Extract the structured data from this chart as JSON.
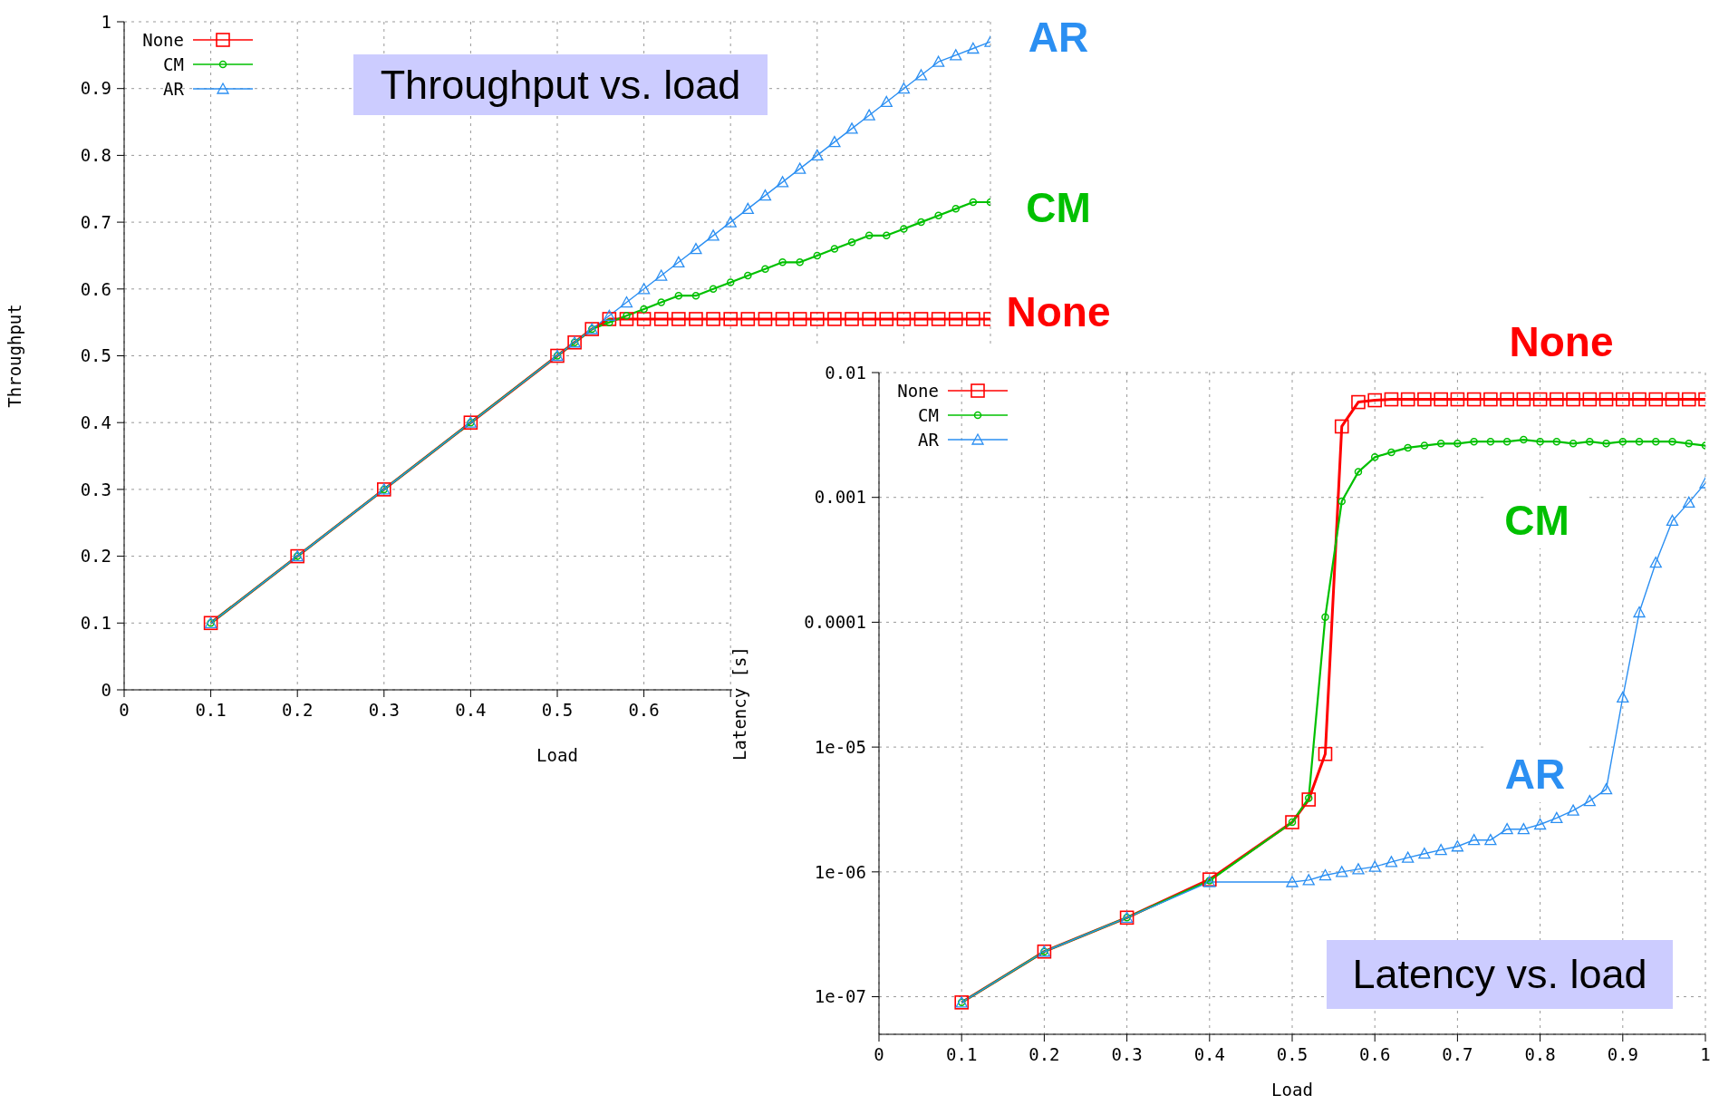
{
  "chart_data": [
    {
      "type": "line",
      "title": "Throughput vs. load",
      "xlabel": "Load",
      "ylabel": "Throughput",
      "x": [
        0.1,
        0.2,
        0.3,
        0.4,
        0.5,
        0.52,
        0.54,
        0.56,
        0.58,
        0.6,
        0.62,
        0.64,
        0.66,
        0.68,
        0.7,
        0.72,
        0.74,
        0.76,
        0.78,
        0.8,
        0.82,
        0.84,
        0.86,
        0.88,
        0.9,
        0.92,
        0.94,
        0.96,
        0.98,
        1.0
      ],
      "series": [
        {
          "name": "None",
          "color": "#ff0000",
          "marker": "square",
          "values": [
            0.1,
            0.2,
            0.3,
            0.4,
            0.5,
            0.52,
            0.54,
            0.555,
            0.555,
            0.555,
            0.555,
            0.555,
            0.555,
            0.555,
            0.555,
            0.555,
            0.555,
            0.555,
            0.555,
            0.555,
            0.555,
            0.555,
            0.555,
            0.555,
            0.555,
            0.555,
            0.555,
            0.555,
            0.555,
            0.555
          ]
        },
        {
          "name": "CM",
          "color": "#00c000",
          "marker": "circle",
          "values": [
            0.1,
            0.2,
            0.3,
            0.4,
            0.5,
            0.52,
            0.54,
            0.55,
            0.56,
            0.57,
            0.58,
            0.59,
            0.59,
            0.6,
            0.61,
            0.62,
            0.63,
            0.64,
            0.64,
            0.65,
            0.66,
            0.67,
            0.68,
            0.68,
            0.69,
            0.7,
            0.71,
            0.72,
            0.73,
            0.73
          ]
        },
        {
          "name": "AR",
          "color": "#2b8ff2",
          "marker": "triangle",
          "values": [
            0.1,
            0.2,
            0.3,
            0.4,
            0.5,
            0.52,
            0.54,
            0.56,
            0.58,
            0.6,
            0.62,
            0.64,
            0.66,
            0.68,
            0.7,
            0.72,
            0.74,
            0.76,
            0.78,
            0.8,
            0.82,
            0.84,
            0.86,
            0.88,
            0.9,
            0.92,
            0.94,
            0.95,
            0.96,
            0.97
          ]
        }
      ],
      "annotations": [
        "None",
        "CM",
        "AR"
      ],
      "xlim": [
        0,
        1
      ],
      "xticks": [
        0,
        0.1,
        0.2,
        0.3,
        0.4,
        0.5,
        0.6,
        {
          "value": 0.7,
          "label": null
        },
        {
          "value": 0.8,
          "label": null
        },
        {
          "value": 0.9,
          "label": null
        },
        {
          "value": 1,
          "label": null
        }
      ],
      "ylim": [
        0,
        1
      ],
      "yticks": [
        0,
        0.1,
        0.2,
        0.3,
        0.4,
        0.5,
        0.6,
        0.7,
        0.8,
        0.9,
        1
      ],
      "grid": true,
      "legend": "top left"
    },
    {
      "type": "line",
      "title": "Latency vs. load",
      "xlabel": "Load",
      "ylabel": "Latency [s]",
      "x": [
        0.1,
        0.2,
        0.3,
        0.4,
        0.5,
        0.52,
        0.54,
        0.56,
        0.58,
        0.6,
        0.62,
        0.64,
        0.66,
        0.68,
        0.7,
        0.72,
        0.74,
        0.76,
        0.78,
        0.8,
        0.82,
        0.84,
        0.86,
        0.88,
        0.9,
        0.92,
        0.94,
        0.96,
        0.98,
        1.0
      ],
      "series": [
        {
          "name": "None",
          "color": "#ff0000",
          "marker": "square",
          "values": [
            9e-08,
            2.3e-07,
            4.3e-07,
            8.7e-07,
            2.5e-06,
            3.8e-06,
            8.8e-06,
            0.0037,
            0.0058,
            0.006,
            0.0061,
            0.0061,
            0.0061,
            0.0061,
            0.0061,
            0.0061,
            0.0061,
            0.0061,
            0.0061,
            0.0061,
            0.0061,
            0.0061,
            0.0061,
            0.0061,
            0.0061,
            0.0061,
            0.0061,
            0.0061,
            0.0061,
            0.0061
          ]
        },
        {
          "name": "CM",
          "color": "#00c000",
          "marker": "circle",
          "values": [
            9e-08,
            2.3e-07,
            4.3e-07,
            8.5e-07,
            2.5e-06,
            3.9e-06,
            0.00011,
            0.00093,
            0.0016,
            0.0021,
            0.0023,
            0.0025,
            0.0026,
            0.0027,
            0.0027,
            0.0028,
            0.0028,
            0.0028,
            0.0029,
            0.0028,
            0.0028,
            0.0027,
            0.0028,
            0.0027,
            0.0028,
            0.0028,
            0.0028,
            0.0028,
            0.0027,
            0.0026
          ]
        },
        {
          "name": "AR",
          "color": "#2b8ff2",
          "marker": "triangle",
          "values": [
            9e-08,
            2.3e-07,
            4.3e-07,
            8.3e-07,
            8.3e-07,
            8.6e-07,
            9.4e-07,
            1e-06,
            1.05e-06,
            1.1e-06,
            1.2e-06,
            1.3e-06,
            1.4e-06,
            1.5e-06,
            1.6e-06,
            1.8e-06,
            1.8e-06,
            2.2e-06,
            2.2e-06,
            2.4e-06,
            2.7e-06,
            3.1e-06,
            3.7e-06,
            4.6e-06,
            2.5e-05,
            0.00012,
            0.0003,
            0.00065,
            0.00091,
            0.0013
          ]
        }
      ],
      "annotations": [
        "None",
        "CM",
        "AR"
      ],
      "xlim": [
        0,
        1
      ],
      "xticks": [
        0,
        0.1,
        0.2,
        0.3,
        0.4,
        0.5,
        0.6,
        0.7,
        0.8,
        0.9,
        1
      ],
      "ylim": [
        5e-08,
        0.01
      ],
      "yticks": [
        {
          "value": 1e-07,
          "label": "1e-07"
        },
        {
          "value": 1e-06,
          "label": "1e-06"
        },
        {
          "value": 1e-05,
          "label": "1e-05"
        },
        0.0001,
        0.001,
        0.01
      ],
      "log": true,
      "grid": true,
      "legend": "top left"
    }
  ]
}
